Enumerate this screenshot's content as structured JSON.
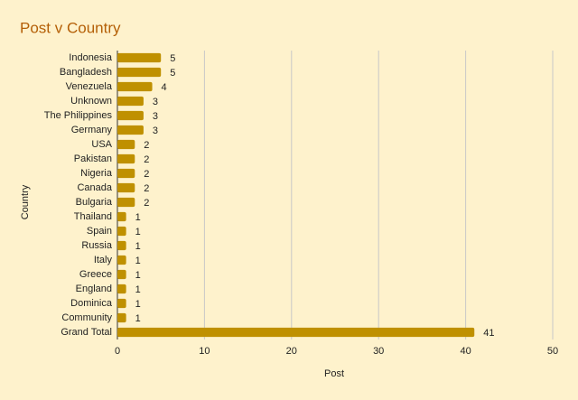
{
  "chart_data": {
    "type": "bar",
    "orientation": "horizontal",
    "title": "Post v Country",
    "x_label": "Post",
    "y_label": "Country",
    "categories": [
      "Indonesia",
      "Bangladesh",
      "Venezuela",
      "Unknown",
      "The Philippines",
      "Germany",
      "USA",
      "Pakistan",
      "Nigeria",
      "Canada",
      "Bulgaria",
      "Thailand",
      "Spain",
      "Russia",
      "Italy",
      "Greece",
      "England",
      "Dominica",
      "Community",
      "Grand Total"
    ],
    "values": [
      5,
      5,
      4,
      3,
      3,
      3,
      2,
      2,
      2,
      2,
      2,
      1,
      1,
      1,
      1,
      1,
      1,
      1,
      1,
      41
    ],
    "color": "#bf9000",
    "xlim": [
      0,
      50
    ],
    "xticks": [
      0,
      10,
      20,
      30,
      40,
      50
    ],
    "grid": true
  }
}
